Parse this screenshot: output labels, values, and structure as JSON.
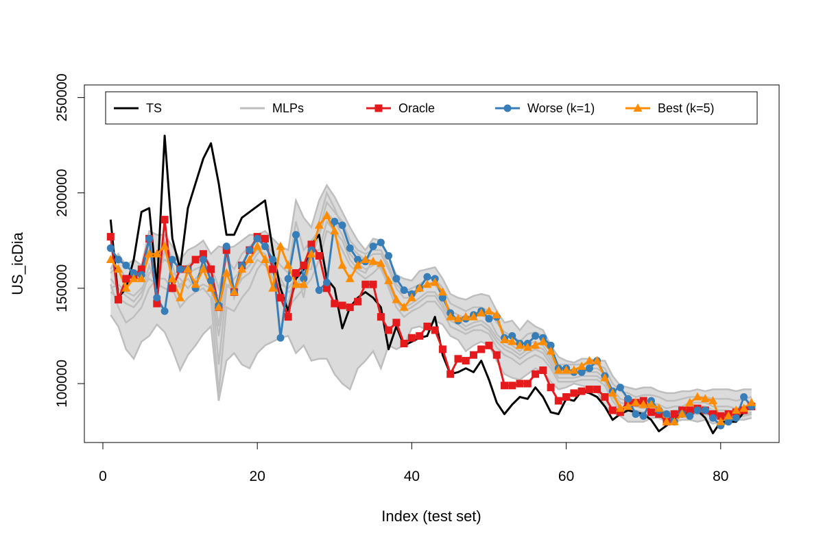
{
  "chart_data": {
    "type": "line",
    "title": "",
    "xlabel": "Index (test set)",
    "ylabel": "US_icDia",
    "xlim": [
      0,
      87
    ],
    "ylim": [
      68000,
      257000
    ],
    "xticks": [
      0,
      20,
      40,
      60,
      80
    ],
    "yticks": [
      100000,
      150000,
      200000,
      250000
    ],
    "xtick_labels": [
      "0",
      "20",
      "40",
      "60",
      "80"
    ],
    "ytick_labels": [
      "100000",
      "150000",
      "200000",
      "250000"
    ],
    "grid": false,
    "legend_position": "top",
    "x": [
      1,
      2,
      3,
      4,
      5,
      6,
      7,
      8,
      9,
      10,
      11,
      12,
      13,
      14,
      15,
      16,
      17,
      18,
      19,
      20,
      21,
      22,
      23,
      24,
      25,
      26,
      27,
      28,
      29,
      30,
      31,
      32,
      33,
      34,
      35,
      36,
      37,
      38,
      39,
      40,
      41,
      42,
      43,
      44,
      45,
      46,
      47,
      48,
      49,
      50,
      51,
      52,
      53,
      54,
      55,
      56,
      57,
      58,
      59,
      60,
      61,
      62,
      63,
      64,
      65,
      66,
      67,
      68,
      69,
      70,
      71,
      72,
      73,
      74,
      75,
      76,
      77,
      78,
      79,
      80,
      81,
      82,
      83,
      84
    ],
    "mlp_band": {
      "name": "MLPs",
      "color": "#bebebe",
      "low": [
        136,
        130,
        118,
        113,
        122,
        125,
        131,
        127,
        118,
        107,
        115,
        120,
        126,
        130,
        91,
        112,
        116,
        110,
        108,
        116,
        120,
        122,
        124,
        125,
        116,
        120,
        112,
        113,
        113,
        105,
        100,
        97,
        108,
        112,
        117,
        108,
        120,
        118,
        120,
        129,
        130,
        128,
        133,
        131,
        125,
        123,
        117,
        120,
        122,
        120,
        112,
        105,
        103,
        102,
        105,
        108,
        106,
        101,
        97,
        98,
        100,
        99,
        98,
        96,
        88,
        85,
        83,
        80,
        80,
        80,
        82,
        82,
        80,
        80,
        81,
        81,
        80,
        81,
        79,
        80,
        80,
        81,
        81,
        82
      ],
      "high": [
        160,
        168,
        162,
        165,
        162,
        180,
        178,
        178,
        172,
        165,
        170,
        172,
        175,
        168,
        172,
        171,
        172,
        175,
        178,
        178,
        180,
        176,
        172,
        170,
        196,
        187,
        182,
        196,
        204,
        198,
        190,
        182,
        175,
        170,
        176,
        175,
        166,
        157,
        155,
        154,
        159,
        160,
        161,
        155,
        147,
        145,
        144,
        146,
        147,
        146,
        138,
        132,
        133,
        128,
        133,
        130,
        128,
        120,
        114,
        112,
        111,
        113,
        113,
        112,
        112,
        104,
        99,
        98,
        97,
        98,
        98,
        96,
        95,
        95,
        96,
        96,
        97,
        96,
        97,
        97,
        97,
        96,
        97,
        97
      ],
      "lines": [
        [
          150,
          152,
          148,
          146,
          150,
          155,
          152,
          150,
          148,
          152,
          155,
          150,
          152,
          150,
          125,
          152,
          148,
          155,
          158,
          165,
          162,
          158,
          152,
          150,
          155,
          158,
          165,
          178,
          190,
          185,
          178,
          168,
          163,
          160,
          162,
          164,
          155,
          145,
          140,
          142,
          145,
          148,
          148,
          142,
          135,
          133,
          130,
          132,
          133,
          130,
          124,
          120,
          118,
          115,
          118,
          120,
          118,
          112,
          105,
          105,
          105,
          106,
          106,
          106,
          103,
          95,
          90,
          89,
          88,
          87,
          88,
          87,
          85,
          86,
          86,
          88,
          88,
          88,
          86,
          86,
          86,
          85,
          86,
          87
        ],
        [
          148,
          145,
          142,
          140,
          145,
          158,
          160,
          165,
          162,
          150,
          158,
          160,
          162,
          155,
          110,
          150,
          155,
          160,
          165,
          170,
          168,
          160,
          155,
          148,
          150,
          160,
          160,
          185,
          200,
          192,
          182,
          172,
          168,
          165,
          168,
          168,
          160,
          150,
          145,
          145,
          150,
          152,
          152,
          146,
          138,
          136,
          134,
          136,
          136,
          134,
          126,
          122,
          120,
          117,
          121,
          122,
          120,
          114,
          107,
          107,
          107,
          108,
          108,
          108,
          105,
          97,
          92,
          91,
          90,
          89,
          90,
          89,
          87,
          88,
          88,
          90,
          90,
          90,
          88,
          88,
          88,
          87,
          88,
          89
        ],
        [
          155,
          150,
          146,
          143,
          148,
          162,
          150,
          170,
          158,
          155,
          150,
          155,
          160,
          158,
          130,
          160,
          145,
          158,
          162,
          168,
          172,
          165,
          150,
          142,
          160,
          145,
          170,
          170,
          185,
          180,
          175,
          165,
          160,
          158,
          165,
          160,
          152,
          143,
          138,
          140,
          143,
          146,
          146,
          140,
          133,
          131,
          128,
          130,
          131,
          128,
          122,
          118,
          116,
          113,
          116,
          118,
          116,
          110,
          103,
          103,
          103,
          104,
          104,
          104,
          101,
          93,
          88,
          87,
          86,
          85,
          86,
          85,
          83,
          84,
          84,
          86,
          86,
          86,
          84,
          84,
          84,
          83,
          84,
          85
        ],
        [
          152,
          140,
          132,
          135,
          140,
          150,
          155,
          155,
          150,
          140,
          145,
          148,
          150,
          145,
          95,
          140,
          138,
          145,
          150,
          160,
          165,
          155,
          145,
          140,
          145,
          150,
          155,
          165,
          180,
          178,
          170,
          162,
          158,
          155,
          158,
          162,
          150,
          140,
          135,
          138,
          140,
          143,
          143,
          138,
          130,
          128,
          126,
          128,
          128,
          126,
          119,
          115,
          113,
          110,
          113,
          115,
          113,
          108,
          101,
          101,
          101,
          102,
          102,
          102,
          99,
          91,
          86,
          86,
          85,
          85,
          85,
          84,
          83,
          83,
          83,
          84,
          84,
          84,
          83,
          83,
          83,
          82,
          83,
          84
        ],
        [
          158,
          162,
          155,
          155,
          158,
          170,
          165,
          175,
          165,
          160,
          162,
          165,
          168,
          162,
          150,
          165,
          160,
          168,
          172,
          175,
          175,
          168,
          162,
          158,
          185,
          170,
          175,
          180,
          195,
          190,
          185,
          175,
          170,
          168,
          170,
          170,
          162,
          152,
          148,
          150,
          152,
          155,
          155,
          150,
          142,
          140,
          138,
          140,
          140,
          138,
          132,
          127,
          125,
          122,
          126,
          127,
          125,
          118,
          110,
          110,
          110,
          110,
          110,
          110,
          108,
          100,
          96,
          95,
          93,
          94,
          94,
          93,
          91,
          91,
          92,
          93,
          93,
          93,
          92,
          92,
          92,
          91,
          92,
          93
        ]
      ]
    },
    "series": [
      {
        "name": "TS",
        "color": "#000000",
        "marker": "none",
        "values": [
          186,
          145,
          150,
          165,
          190,
          192,
          150,
          230,
          176,
          160,
          192,
          205,
          218,
          226,
          205,
          178,
          178,
          187,
          190,
          193,
          196,
          170,
          150,
          138,
          155,
          160,
          173,
          178,
          155,
          150,
          129,
          140,
          145,
          148,
          145,
          140,
          118,
          130,
          120,
          122,
          124,
          125,
          135,
          115,
          105,
          106,
          108,
          106,
          112,
          102,
          90,
          84,
          89,
          93,
          92,
          98,
          93,
          85,
          84,
          92,
          91,
          96,
          95,
          93,
          88,
          81,
          84,
          86,
          85,
          84,
          81,
          75,
          78,
          82,
          84,
          85,
          86,
          82,
          74,
          80,
          80,
          80,
          85,
          90
        ]
      },
      {
        "name": "Oracle",
        "color": "#e41a1c",
        "marker": "square",
        "values": [
          177,
          144,
          155,
          157,
          160,
          176,
          142,
          186,
          150,
          160,
          160,
          165,
          168,
          160,
          140,
          170,
          148,
          162,
          170,
          177,
          176,
          160,
          145,
          135,
          158,
          162,
          173,
          167,
          150,
          142,
          141,
          140,
          143,
          152,
          152,
          135,
          128,
          132,
          121,
          124,
          125,
          130,
          128,
          118,
          105,
          113,
          112,
          115,
          118,
          120,
          115,
          99,
          99,
          100,
          100,
          105,
          107,
          98,
          91,
          93,
          95,
          96,
          97,
          97,
          93,
          86,
          85,
          91,
          90,
          91,
          85,
          84,
          80,
          84,
          86,
          86,
          87,
          86,
          84,
          83,
          84,
          85,
          86,
          88
        ]
      },
      {
        "name": "Worse (k=1)",
        "color": "#377eb8",
        "marker": "circle",
        "values": [
          171,
          165,
          162,
          158,
          157,
          176,
          145,
          138,
          165,
          160,
          160,
          150,
          165,
          154,
          141,
          172,
          148,
          162,
          170,
          176,
          172,
          165,
          124,
          155,
          178,
          155,
          170,
          149,
          153,
          185,
          183,
          171,
          165,
          164,
          172,
          174,
          167,
          155,
          149,
          147,
          150,
          156,
          155,
          145,
          137,
          133,
          134,
          136,
          138,
          134,
          135,
          124,
          125,
          121,
          121,
          125,
          124,
          120,
          108,
          108,
          106,
          106,
          108,
          112,
          104,
          96,
          98,
          92,
          84,
          83,
          91,
          86,
          84,
          80,
          84,
          83,
          86,
          86,
          82,
          78,
          80,
          82,
          93,
          88
        ]
      },
      {
        "name": "Best (k=5)",
        "color": "#ff8c00",
        "marker": "triangle",
        "values": [
          165,
          160,
          150,
          155,
          155,
          168,
          168,
          172,
          155,
          145,
          160,
          152,
          160,
          150,
          140,
          158,
          148,
          160,
          165,
          172,
          165,
          150,
          172,
          162,
          152,
          152,
          168,
          183,
          188,
          180,
          162,
          155,
          162,
          165,
          164,
          163,
          154,
          144,
          140,
          145,
          150,
          152,
          153,
          148,
          135,
          134,
          135,
          135,
          137,
          138,
          136,
          123,
          122,
          120,
          119,
          120,
          122,
          117,
          107,
          107,
          107,
          109,
          112,
          112,
          103,
          95,
          87,
          88,
          90,
          89,
          89,
          87,
          80,
          80,
          84,
          90,
          93,
          92,
          91,
          80,
          83,
          86,
          87,
          90
        ]
      }
    ],
    "legend": [
      "TS",
      "MLPs",
      "Oracle",
      "Worse (k=1)",
      "Best (k=5)"
    ]
  }
}
